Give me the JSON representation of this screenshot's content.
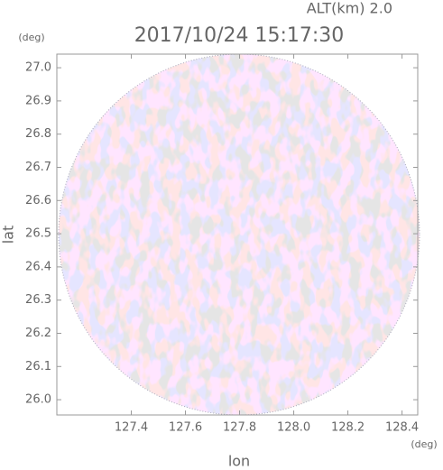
{
  "chart_data": {
    "type": "radar-ppi",
    "title": "2017/10/24 15:17:30",
    "subtitle": "ALT(km) 2.0",
    "x_label": "lon",
    "y_label": "lat",
    "x_unit": "(deg)",
    "y_unit": "(deg)",
    "xlim": [
      127.125,
      128.458
    ],
    "ylim": [
      25.954,
      27.041
    ],
    "xticks": [
      127.4,
      127.6,
      127.8,
      {
        "value": 128,
        "label": "128.0"
      },
      128.2,
      128.4
    ],
    "yticks": [
      {
        "value": 26,
        "label": "26.0"
      },
      26.1,
      26.2,
      26.3,
      26.4,
      26.5,
      26.6,
      26.7,
      26.8,
      26.9,
      {
        "value": 27,
        "label": "27.0"
      }
    ]
  }
}
